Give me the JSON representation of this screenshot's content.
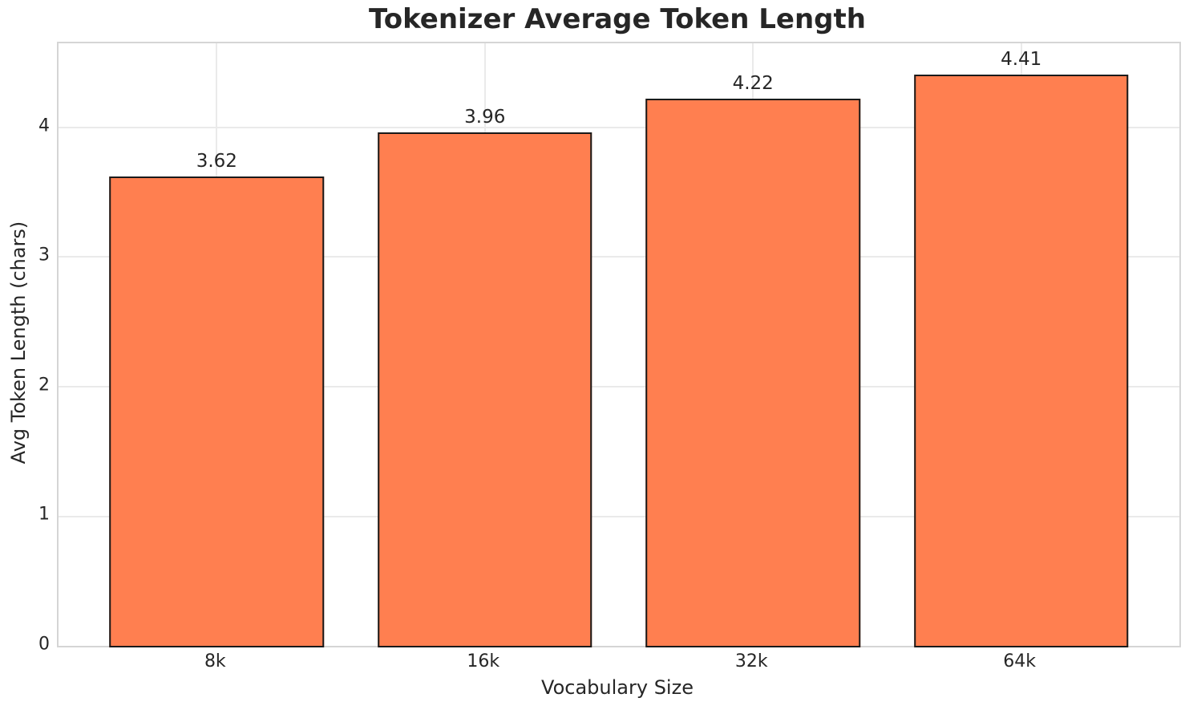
{
  "chart_data": {
    "type": "bar",
    "title": "Tokenizer Average Token Length",
    "xlabel": "Vocabulary Size",
    "ylabel": "Avg Token Length (chars)",
    "categories": [
      "8k",
      "16k",
      "32k",
      "64k"
    ],
    "values": [
      3.62,
      3.96,
      4.22,
      4.41
    ],
    "value_labels": [
      "3.62",
      "3.96",
      "4.22",
      "4.41"
    ],
    "yticks": [
      0,
      1,
      2,
      3,
      4
    ],
    "ylim": [
      0,
      4.65
    ],
    "grid": true,
    "legend_position": "none",
    "colors": {
      "bar_fill": "#FF7F50",
      "bar_edge": "#1a1a1a",
      "grid_line": "#eaeaea",
      "spine": "#d5d5d5",
      "text": "#262626",
      "background": "#ffffff"
    }
  }
}
